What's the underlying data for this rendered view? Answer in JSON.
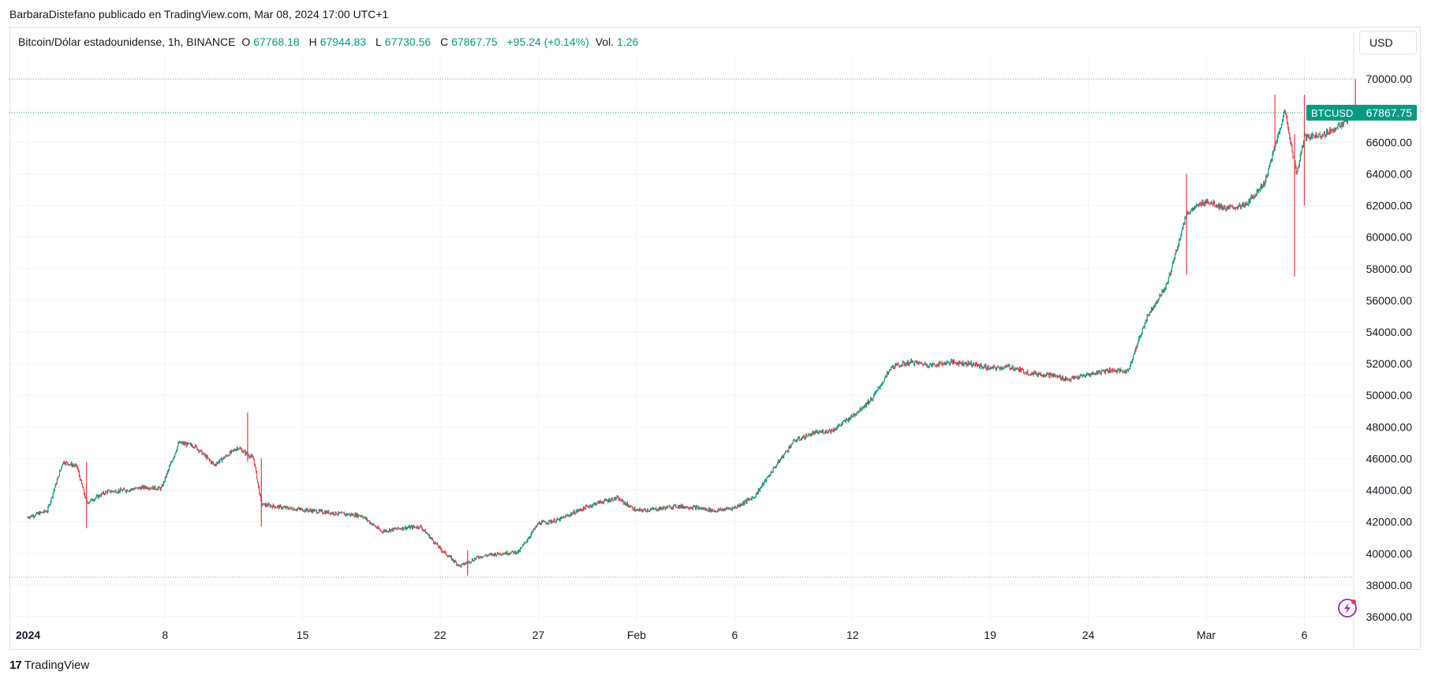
{
  "attribution": "BarbaraDistefano publicado en TradingView.com, Mar 08, 2024 17:00 UTC+1",
  "legend": {
    "symbol": "Bitcoin/Dólar estadounidense, 1h, BINANCE",
    "o_label": "O",
    "o_value": "67768.18",
    "h_label": "H",
    "h_value": "67944.83",
    "l_label": "L",
    "l_value": "67730.56",
    "c_label": "C",
    "c_value": "67867.75",
    "change": "+95.24 (+0.14%)",
    "vol_label": "Vol.",
    "vol_value": "1.26"
  },
  "currency_button": "USD",
  "price_tag": {
    "symbol": "BTCUSD",
    "value": "67867.75"
  },
  "footer": {
    "logo": "17",
    "brand": "TradingView"
  },
  "colors": {
    "up": "#089981",
    "down": "#f23645",
    "grid": "#f0f3fa",
    "accent": "#089981",
    "bolt": "#9c27b0"
  },
  "icons": {
    "lightning": "bolt-icon",
    "tv_logo": "tradingview-logo-icon"
  },
  "chart_data": {
    "type": "candlestick",
    "interval": "1h",
    "ylim": [
      35500,
      71500
    ],
    "y_ticks": [
      "36000.00",
      "38000.00",
      "40000.00",
      "42000.00",
      "44000.00",
      "46000.00",
      "48000.00",
      "50000.00",
      "52000.00",
      "54000.00",
      "56000.00",
      "58000.00",
      "60000.00",
      "62000.00",
      "64000.00",
      "66000.00",
      "68000.00",
      "70000.00"
    ],
    "x_ticks": [
      {
        "label": "2024",
        "day": 0,
        "bold": true
      },
      {
        "label": "8",
        "day": 7
      },
      {
        "label": "15",
        "day": 14
      },
      {
        "label": "22",
        "day": 21
      },
      {
        "label": "27",
        "day": 26
      },
      {
        "label": "Feb",
        "day": 31
      },
      {
        "label": "6",
        "day": 36
      },
      {
        "label": "12",
        "day": 42
      },
      {
        "label": "19",
        "day": 49
      },
      {
        "label": "24",
        "day": 54
      },
      {
        "label": "Mar",
        "day": 60
      },
      {
        "label": "6",
        "day": 65
      }
    ],
    "last_price": 67867.75,
    "dotted_levels": [
      70000,
      38500
    ],
    "daily_path": [
      {
        "day": 0,
        "price": 42300
      },
      {
        "day": 1,
        "price": 42700
      },
      {
        "day": 1.8,
        "price": 45800
      },
      {
        "day": 2.5,
        "price": 45500
      },
      {
        "day": 3.0,
        "price": 43200
      },
      {
        "day": 4,
        "price": 43900
      },
      {
        "day": 5,
        "price": 44000
      },
      {
        "day": 6,
        "price": 44200
      },
      {
        "day": 6.8,
        "price": 44100
      },
      {
        "day": 7.7,
        "price": 47000
      },
      {
        "day": 8.5,
        "price": 46800
      },
      {
        "day": 9.5,
        "price": 45600
      },
      {
        "day": 10.7,
        "price": 46700
      },
      {
        "day": 11.5,
        "price": 46000
      },
      {
        "day": 11.9,
        "price": 43100
      },
      {
        "day": 13,
        "price": 42900
      },
      {
        "day": 14.5,
        "price": 42700
      },
      {
        "day": 16,
        "price": 42500
      },
      {
        "day": 17,
        "price": 42400
      },
      {
        "day": 18,
        "price": 41400
      },
      {
        "day": 19,
        "price": 41600
      },
      {
        "day": 20,
        "price": 41700
      },
      {
        "day": 21,
        "price": 40300
      },
      {
        "day": 22,
        "price": 39200
      },
      {
        "day": 23,
        "price": 39800
      },
      {
        "day": 24,
        "price": 40000
      },
      {
        "day": 25,
        "price": 40100
      },
      {
        "day": 26,
        "price": 41900
      },
      {
        "day": 27,
        "price": 42100
      },
      {
        "day": 28,
        "price": 42700
      },
      {
        "day": 29,
        "price": 43200
      },
      {
        "day": 30,
        "price": 43500
      },
      {
        "day": 31,
        "price": 42700
      },
      {
        "day": 32,
        "price": 42800
      },
      {
        "day": 33,
        "price": 43000
      },
      {
        "day": 34,
        "price": 42900
      },
      {
        "day": 35,
        "price": 42700
      },
      {
        "day": 36,
        "price": 42900
      },
      {
        "day": 37,
        "price": 43600
      },
      {
        "day": 38,
        "price": 45400
      },
      {
        "day": 39,
        "price": 47100
      },
      {
        "day": 40,
        "price": 47600
      },
      {
        "day": 41,
        "price": 47800
      },
      {
        "day": 42,
        "price": 48700
      },
      {
        "day": 43,
        "price": 49800
      },
      {
        "day": 44,
        "price": 51800
      },
      {
        "day": 45,
        "price": 52100
      },
      {
        "day": 46,
        "price": 51900
      },
      {
        "day": 47,
        "price": 52100
      },
      {
        "day": 48,
        "price": 52000
      },
      {
        "day": 49,
        "price": 51700
      },
      {
        "day": 50,
        "price": 51800
      },
      {
        "day": 51,
        "price": 51400
      },
      {
        "day": 52,
        "price": 51300
      },
      {
        "day": 53,
        "price": 51000
      },
      {
        "day": 54,
        "price": 51300
      },
      {
        "day": 55,
        "price": 51600
      },
      {
        "day": 56,
        "price": 51500
      },
      {
        "day": 57,
        "price": 55000
      },
      {
        "day": 58,
        "price": 57000
      },
      {
        "day": 59,
        "price": 61500
      },
      {
        "day": 60,
        "price": 62300
      },
      {
        "day": 61,
        "price": 61800
      },
      {
        "day": 62,
        "price": 62000
      },
      {
        "day": 63,
        "price": 63500
      },
      {
        "day": 64,
        "price": 68000
      },
      {
        "day": 64.6,
        "price": 64000
      },
      {
        "day": 65,
        "price": 66300
      },
      {
        "day": 66,
        "price": 66500
      },
      {
        "day": 67,
        "price": 67200
      },
      {
        "day": 67.6,
        "price": 67867
      }
    ],
    "spikes": [
      {
        "day": 3.0,
        "high": 45800,
        "low": 41600
      },
      {
        "day": 11.2,
        "high": 48900,
        "low": 45800
      },
      {
        "day": 11.9,
        "high": 46000,
        "low": 41700
      },
      {
        "day": 22.4,
        "high": 40200,
        "low": 38600
      },
      {
        "day": 59.0,
        "high": 64000,
        "low": 57600
      },
      {
        "day": 63.5,
        "high": 69000,
        "low": 65500
      },
      {
        "day": 64.5,
        "high": 66500,
        "low": 57500
      },
      {
        "day": 65.0,
        "high": 69000,
        "low": 62000
      },
      {
        "day": 67.6,
        "high": 70000,
        "low": 67700
      }
    ]
  }
}
